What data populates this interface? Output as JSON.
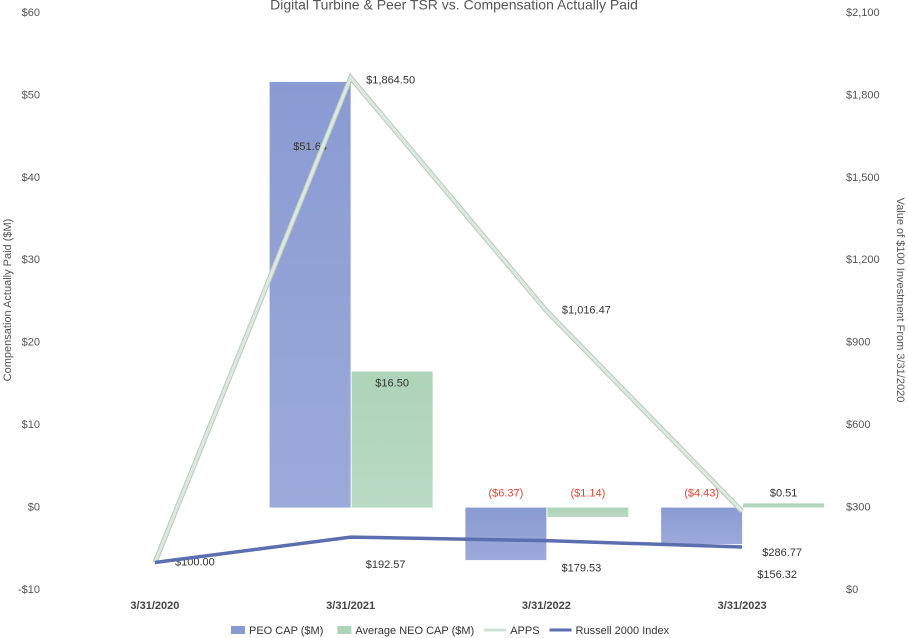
{
  "chart_data": {
    "type": "bar_line_combo",
    "title": "Digital Turbine & Peer TSR vs. Compensation Actually Paid",
    "y_label": "Compensation Actually Paid ($M)",
    "y2_label": "Value of $100 Investment From 3/31/2020",
    "categories": [
      "3/31/2020",
      "3/31/2021",
      "3/31/2022",
      "3/31/2023"
    ],
    "ylim": [
      -10,
      60
    ],
    "yticks": [
      {
        "value": -10,
        "label": "-$10"
      },
      {
        "value": 0,
        "label": "$0"
      },
      {
        "value": 10,
        "label": "$10"
      },
      {
        "value": 20,
        "label": "$20"
      },
      {
        "value": 30,
        "label": "$30"
      },
      {
        "value": 40,
        "label": "$40"
      },
      {
        "value": 50,
        "label": "$50"
      },
      {
        "value": 60,
        "label": "$60"
      }
    ],
    "y2lim": [
      0,
      2100
    ],
    "y2ticks": [
      {
        "value": 0,
        "label": "$0"
      },
      {
        "value": 300,
        "label": "$300"
      },
      {
        "value": 600,
        "label": "$600"
      },
      {
        "value": 900,
        "label": "$900"
      },
      {
        "value": 1200,
        "label": "$1,200"
      },
      {
        "value": 1500,
        "label": "$1,500"
      },
      {
        "value": 1800,
        "label": "$1,800"
      },
      {
        "value": 2100,
        "label": "$2,100"
      }
    ],
    "grid": false,
    "legend": "bottom",
    "series": [
      {
        "name": "PEO CAP ($M)",
        "type": "bar",
        "color": "#8a9bd3",
        "values": [
          null,
          51.64,
          -6.37,
          -4.43
        ],
        "value_labels": [
          null,
          "$51.64",
          "($6.37)",
          "($4.43)"
        ]
      },
      {
        "name": "Average NEO CAP ($M)",
        "type": "bar",
        "color": "#add3b9",
        "values": [
          null,
          16.5,
          -1.14,
          0.51
        ],
        "value_labels": [
          null,
          "$16.50",
          "($1.14)",
          "$0.51"
        ]
      },
      {
        "name": "APPS",
        "type": "line",
        "axis": "y2",
        "color": "#dce9e0",
        "values": [
          100.0,
          1864.5,
          1016.47,
          286.77
        ],
        "value_labels": [
          "$100.00",
          "$1,864.50",
          "$1,016.47",
          "$286.77"
        ]
      },
      {
        "name": "Russell 2000 Index",
        "type": "line",
        "axis": "y2",
        "color": "#5b6fb0",
        "values": [
          100.0,
          192.57,
          179.53,
          156.32
        ],
        "value_labels": [
          null,
          "$192.57",
          "$179.53",
          "$156.32"
        ]
      }
    ]
  }
}
